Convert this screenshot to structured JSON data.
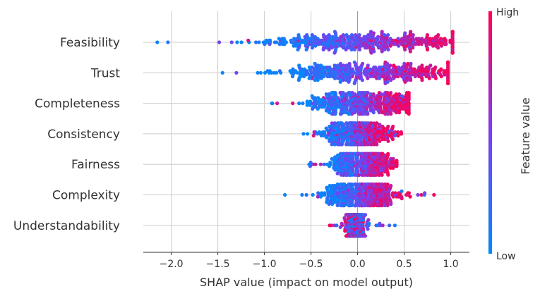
{
  "chart_data": {
    "type": "scatter",
    "subtype": "shap-beeswarm",
    "xlabel": "SHAP value (impact on model output)",
    "xlim": [
      -2.3,
      1.2
    ],
    "xticks": [
      -2.0,
      -1.5,
      -1.0,
      -0.5,
      0.0,
      0.5,
      1.0
    ],
    "xtick_labels": [
      "−2.0",
      "−1.5",
      "−1.0",
      "−0.5",
      "0.0",
      "0.5",
      "1.0"
    ],
    "grid": true,
    "zero_line": 0.0,
    "features": [
      {
        "name": "Feasibility",
        "range": [
          -2.15,
          1.02
        ],
        "low_center": -0.8,
        "high_center": 0.95,
        "spread": 0.55
      },
      {
        "name": "Trust",
        "range": [
          -1.45,
          0.97
        ],
        "low_center": -0.62,
        "high_center": 0.9,
        "spread": 0.5
      },
      {
        "name": "Completeness",
        "range": [
          -0.92,
          0.55
        ],
        "low_center": -0.35,
        "high_center": 0.45,
        "spread": 0.35
      },
      {
        "name": "Consistency",
        "range": [
          -0.58,
          0.47
        ],
        "low_center": -0.25,
        "high_center": 0.22,
        "spread": 0.25
      },
      {
        "name": "Fairness",
        "range": [
          -0.52,
          0.42
        ],
        "low_center": -0.2,
        "high_center": 0.3,
        "spread": 0.22
      },
      {
        "name": "Complexity",
        "range": [
          -0.78,
          0.82
        ],
        "low_center": -0.25,
        "high_center": 0.35,
        "spread": 0.25
      },
      {
        "name": "Understandability",
        "range": [
          -0.3,
          0.4
        ],
        "low_center": -0.02,
        "high_center": -0.05,
        "spread": 0.12
      }
    ],
    "colorbar": {
      "title": "Feature value",
      "high_label": "High",
      "low_label": "Low",
      "low_color": "#008afb",
      "mid_color": "#7c3df0",
      "high_color": "#ff0052"
    }
  }
}
